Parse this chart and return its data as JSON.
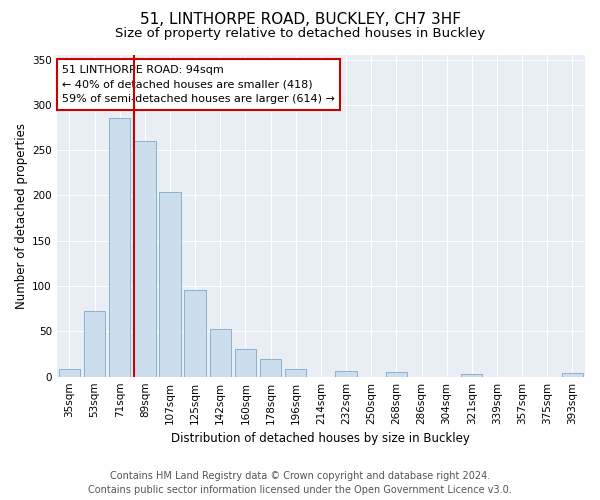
{
  "title": "51, LINTHORPE ROAD, BUCKLEY, CH7 3HF",
  "subtitle": "Size of property relative to detached houses in Buckley",
  "xlabel": "Distribution of detached houses by size in Buckley",
  "ylabel": "Number of detached properties",
  "bar_labels": [
    "35sqm",
    "53sqm",
    "71sqm",
    "89sqm",
    "107sqm",
    "125sqm",
    "142sqm",
    "160sqm",
    "178sqm",
    "196sqm",
    "214sqm",
    "232sqm",
    "250sqm",
    "268sqm",
    "286sqm",
    "304sqm",
    "321sqm",
    "339sqm",
    "357sqm",
    "375sqm",
    "393sqm"
  ],
  "bar_heights": [
    9,
    72,
    285,
    260,
    204,
    96,
    53,
    31,
    20,
    8,
    0,
    6,
    0,
    5,
    0,
    0,
    3,
    0,
    0,
    0,
    4
  ],
  "bar_color": "#ccdded",
  "bar_edge_color": "#7aaac8",
  "vline_x_index": 3,
  "vline_color": "#cc0000",
  "annotation_title": "51 LINTHORPE ROAD: 94sqm",
  "annotation_line1": "← 40% of detached houses are smaller (418)",
  "annotation_line2": "59% of semi-detached houses are larger (614) →",
  "annotation_box_facecolor": "#ffffff",
  "annotation_box_edgecolor": "#cc0000",
  "ylim": [
    0,
    355
  ],
  "yticks": [
    0,
    50,
    100,
    150,
    200,
    250,
    300,
    350
  ],
  "footer_line1": "Contains HM Land Registry data © Crown copyright and database right 2024.",
  "footer_line2": "Contains public sector information licensed under the Open Government Licence v3.0.",
  "bg_color": "#ffffff",
  "plot_bg_color": "#e8eef4",
  "title_fontsize": 11,
  "subtitle_fontsize": 9.5,
  "axis_label_fontsize": 8.5,
  "tick_fontsize": 7.5,
  "annotation_fontsize": 8,
  "footer_fontsize": 7
}
